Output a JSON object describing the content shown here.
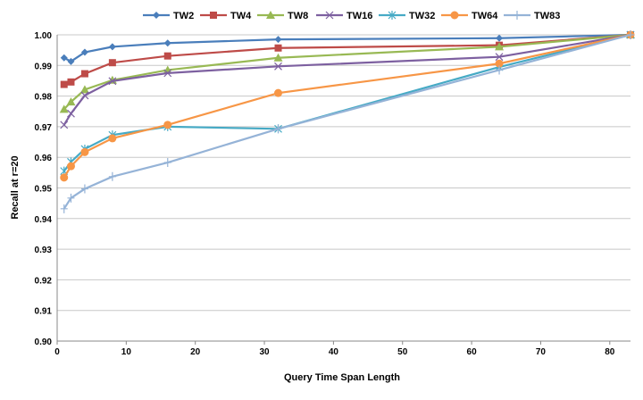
{
  "chart_data": {
    "type": "line",
    "title": "",
    "xlabel": "Query Time Span Length",
    "ylabel": "Recall at r=20",
    "xlim": [
      0,
      83
    ],
    "ylim": [
      0.9,
      1.0
    ],
    "x_ticks": [
      "0",
      "10",
      "20",
      "30",
      "40",
      "50",
      "60",
      "70",
      "80"
    ],
    "y_ticks": [
      "0.90",
      "0.91",
      "0.92",
      "0.93",
      "0.94",
      "0.95",
      "0.96",
      "0.97",
      "0.98",
      "0.99",
      "1.00"
    ],
    "grid": "horizontal",
    "legend_position": "top",
    "x": [
      1,
      2,
      4,
      8,
      16,
      32,
      64,
      83
    ],
    "series": [
      {
        "name": "TW2",
        "color": "#4A7EBB",
        "marker": "diamond",
        "values": [
          0.9925,
          0.9913,
          0.9943,
          0.9961,
          0.9973,
          0.9985,
          0.9989,
          1.0
        ]
      },
      {
        "name": "TW4",
        "color": "#BE4B48",
        "marker": "square",
        "values": [
          0.9838,
          0.9846,
          0.9873,
          0.9909,
          0.9931,
          0.9957,
          0.9966,
          1.0
        ]
      },
      {
        "name": "TW8",
        "color": "#98B954",
        "marker": "triangle",
        "values": [
          0.9757,
          0.9781,
          0.9821,
          0.9852,
          0.9885,
          0.9925,
          0.9961,
          1.0
        ]
      },
      {
        "name": "TW16",
        "color": "#7D60A0",
        "marker": "x",
        "values": [
          0.9706,
          0.9743,
          0.9802,
          0.9849,
          0.9875,
          0.9897,
          0.9928,
          1.0
        ]
      },
      {
        "name": "TW32",
        "color": "#46AAC5",
        "marker": "asterisk",
        "values": [
          0.9555,
          0.9585,
          0.9627,
          0.9673,
          0.97,
          0.9693,
          0.9895,
          1.0
        ]
      },
      {
        "name": "TW64",
        "color": "#F79646",
        "marker": "circle",
        "values": [
          0.9534,
          0.9571,
          0.9617,
          0.9662,
          0.9706,
          0.981,
          0.9906,
          1.0
        ]
      },
      {
        "name": "TW83",
        "color": "#95B3D7",
        "marker": "plus",
        "values": [
          0.9432,
          0.9467,
          0.9497,
          0.9537,
          0.9583,
          0.9693,
          0.9885,
          1.0
        ]
      }
    ]
  }
}
